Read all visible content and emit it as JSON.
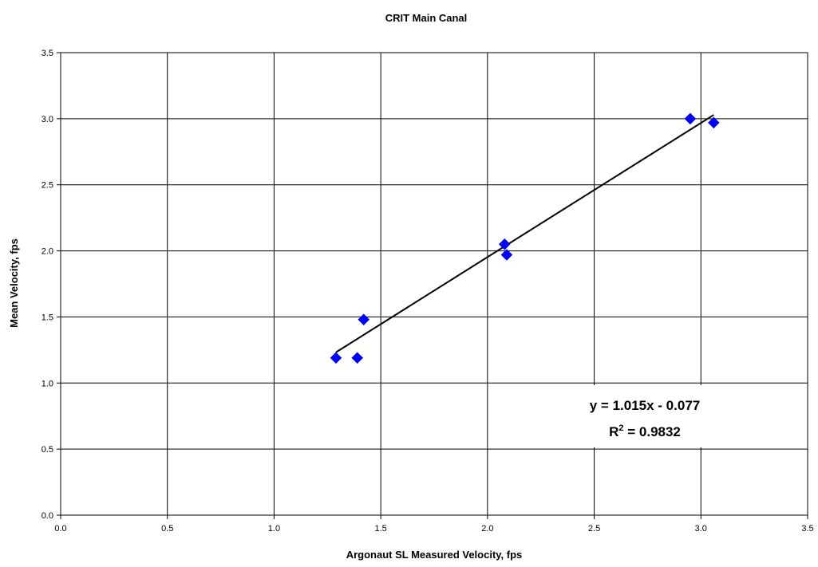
{
  "chart_data": {
    "type": "scatter",
    "title": "CRIT Main Canal",
    "xlabel": "Argonaut SL Measured Velocity, fps",
    "ylabel": "Mean Velocity, fps",
    "xlim": [
      0,
      3.5
    ],
    "ylim": [
      0,
      3.5
    ],
    "xticks": [
      "0.0",
      "0.5",
      "1.0",
      "1.5",
      "2.0",
      "2.5",
      "3.0",
      "3.5"
    ],
    "yticks": [
      "0.0",
      "0.5",
      "1.0",
      "1.5",
      "2.0",
      "2.5",
      "3.0",
      "3.5"
    ],
    "grid": true,
    "marker_color": "#0000ff",
    "points": [
      {
        "x": 1.29,
        "y": 1.19
      },
      {
        "x": 1.39,
        "y": 1.19
      },
      {
        "x": 1.42,
        "y": 1.48
      },
      {
        "x": 2.08,
        "y": 2.05
      },
      {
        "x": 2.09,
        "y": 1.97
      },
      {
        "x": 2.95,
        "y": 3.0
      },
      {
        "x": 3.06,
        "y": 2.97
      }
    ],
    "trendline": {
      "slope": 1.015,
      "intercept": -0.077,
      "x_range": [
        1.29,
        3.06
      ],
      "equation": "y = 1.015x - 0.077",
      "r2_prefix": "R",
      "r2_exp": "2",
      "r2_value": " = 0.9832"
    }
  }
}
